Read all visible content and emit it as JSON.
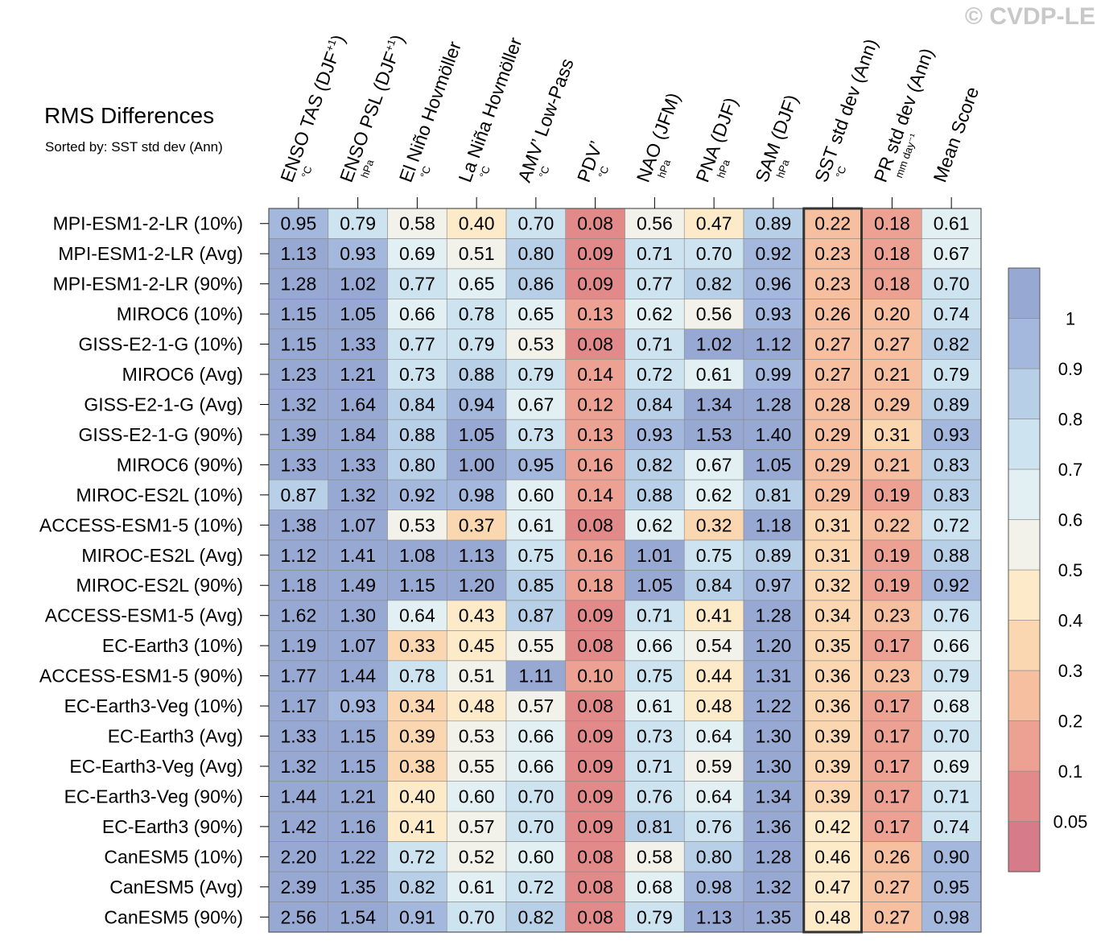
{
  "watermark": "© CVDP-LE",
  "chart_data": {
    "type": "heatmap",
    "title": "RMS Differences",
    "subtitle": "Sorted by: SST std dev (Ann)",
    "columns": [
      {
        "label": "ENSO TAS (DJF",
        "sup": "+1",
        "close": ")",
        "unit": "°C"
      },
      {
        "label": "ENSO PSL (DJF",
        "sup": "+1",
        "close": ")",
        "unit": "hPa"
      },
      {
        "label": "El Niño Hovmöller",
        "sup": "",
        "close": "",
        "unit": "°C"
      },
      {
        "label": "La Niña Hovmöller",
        "sup": "",
        "close": "",
        "unit": "°C"
      },
      {
        "label": "AMV’ Low-Pass",
        "sup": "",
        "close": "",
        "unit": "°C"
      },
      {
        "label": "PDV’",
        "sup": "",
        "close": "",
        "unit": "°C"
      },
      {
        "label": "NAO (JFM)",
        "sup": "",
        "close": "",
        "unit": "hPa"
      },
      {
        "label": "PNA (DJF)",
        "sup": "",
        "close": "",
        "unit": "hPa"
      },
      {
        "label": "SAM (DJF)",
        "sup": "",
        "close": "",
        "unit": "hPa"
      },
      {
        "label": "SST std dev (Ann)",
        "sup": "",
        "close": "",
        "unit": "°C"
      },
      {
        "label": "PR std dev (Ann)",
        "sup": "",
        "close": "",
        "unit": "mm day⁻¹"
      },
      {
        "label": "Mean Score",
        "sup": "",
        "close": "",
        "unit": ""
      }
    ],
    "rows": [
      "MPI-ESM1-2-LR (10%)",
      "MPI-ESM1-2-LR (Avg)",
      "MPI-ESM1-2-LR (90%)",
      "MIROC6 (10%)",
      "GISS-E2-1-G (10%)",
      "MIROC6 (Avg)",
      "GISS-E2-1-G (Avg)",
      "GISS-E2-1-G (90%)",
      "MIROC6 (90%)",
      "MIROC-ES2L (10%)",
      "ACCESS-ESM1-5 (10%)",
      "MIROC-ES2L (Avg)",
      "MIROC-ES2L (90%)",
      "ACCESS-ESM1-5 (Avg)",
      "EC-Earth3 (10%)",
      "ACCESS-ESM1-5 (90%)",
      "EC-Earth3-Veg (10%)",
      "EC-Earth3 (Avg)",
      "EC-Earth3-Veg (Avg)",
      "EC-Earth3-Veg (90%)",
      "EC-Earth3 (90%)",
      "CanESM5 (10%)",
      "CanESM5 (Avg)",
      "CanESM5 (90%)"
    ],
    "values": [
      [
        "0.95",
        "0.79",
        "0.58",
        "0.40",
        "0.70",
        "0.08",
        "0.56",
        "0.47",
        "0.89",
        "0.22",
        "0.18",
        "0.61"
      ],
      [
        "1.13",
        "0.93",
        "0.69",
        "0.51",
        "0.80",
        "0.09",
        "0.71",
        "0.70",
        "0.92",
        "0.23",
        "0.18",
        "0.67"
      ],
      [
        "1.28",
        "1.02",
        "0.77",
        "0.65",
        "0.86",
        "0.09",
        "0.77",
        "0.82",
        "0.96",
        "0.23",
        "0.18",
        "0.70"
      ],
      [
        "1.15",
        "1.05",
        "0.66",
        "0.78",
        "0.65",
        "0.13",
        "0.62",
        "0.56",
        "0.93",
        "0.26",
        "0.20",
        "0.74"
      ],
      [
        "1.15",
        "1.33",
        "0.77",
        "0.79",
        "0.53",
        "0.08",
        "0.71",
        "1.02",
        "1.12",
        "0.27",
        "0.27",
        "0.82"
      ],
      [
        "1.23",
        "1.21",
        "0.73",
        "0.88",
        "0.79",
        "0.14",
        "0.72",
        "0.61",
        "0.99",
        "0.27",
        "0.21",
        "0.79"
      ],
      [
        "1.32",
        "1.64",
        "0.84",
        "0.94",
        "0.67",
        "0.12",
        "0.84",
        "1.34",
        "1.28",
        "0.28",
        "0.29",
        "0.89"
      ],
      [
        "1.39",
        "1.84",
        "0.88",
        "1.05",
        "0.73",
        "0.13",
        "0.93",
        "1.53",
        "1.40",
        "0.29",
        "0.31",
        "0.93"
      ],
      [
        "1.33",
        "1.33",
        "0.80",
        "1.00",
        "0.95",
        "0.16",
        "0.82",
        "0.67",
        "1.05",
        "0.29",
        "0.21",
        "0.83"
      ],
      [
        "0.87",
        "1.32",
        "0.92",
        "0.98",
        "0.60",
        "0.14",
        "0.88",
        "0.62",
        "0.81",
        "0.29",
        "0.19",
        "0.83"
      ],
      [
        "1.38",
        "1.07",
        "0.53",
        "0.37",
        "0.61",
        "0.08",
        "0.62",
        "0.32",
        "1.18",
        "0.31",
        "0.22",
        "0.72"
      ],
      [
        "1.12",
        "1.41",
        "1.08",
        "1.13",
        "0.75",
        "0.16",
        "1.01",
        "0.75",
        "0.89",
        "0.31",
        "0.19",
        "0.88"
      ],
      [
        "1.18",
        "1.49",
        "1.15",
        "1.20",
        "0.85",
        "0.18",
        "1.05",
        "0.84",
        "0.97",
        "0.32",
        "0.19",
        "0.92"
      ],
      [
        "1.62",
        "1.30",
        "0.64",
        "0.43",
        "0.87",
        "0.09",
        "0.71",
        "0.41",
        "1.28",
        "0.34",
        "0.23",
        "0.76"
      ],
      [
        "1.19",
        "1.07",
        "0.33",
        "0.45",
        "0.55",
        "0.08",
        "0.66",
        "0.54",
        "1.20",
        "0.35",
        "0.17",
        "0.66"
      ],
      [
        "1.77",
        "1.44",
        "0.78",
        "0.51",
        "1.11",
        "0.10",
        "0.75",
        "0.44",
        "1.31",
        "0.36",
        "0.23",
        "0.79"
      ],
      [
        "1.17",
        "0.93",
        "0.34",
        "0.48",
        "0.57",
        "0.08",
        "0.61",
        "0.48",
        "1.22",
        "0.36",
        "0.17",
        "0.68"
      ],
      [
        "1.33",
        "1.15",
        "0.39",
        "0.53",
        "0.66",
        "0.09",
        "0.73",
        "0.64",
        "1.30",
        "0.39",
        "0.17",
        "0.70"
      ],
      [
        "1.32",
        "1.15",
        "0.38",
        "0.55",
        "0.66",
        "0.09",
        "0.71",
        "0.59",
        "1.30",
        "0.39",
        "0.17",
        "0.69"
      ],
      [
        "1.44",
        "1.21",
        "0.40",
        "0.60",
        "0.70",
        "0.09",
        "0.76",
        "0.64",
        "1.34",
        "0.39",
        "0.17",
        "0.71"
      ],
      [
        "1.42",
        "1.16",
        "0.41",
        "0.57",
        "0.70",
        "0.09",
        "0.81",
        "0.76",
        "1.36",
        "0.42",
        "0.17",
        "0.74"
      ],
      [
        "2.20",
        "1.22",
        "0.72",
        "0.52",
        "0.60",
        "0.08",
        "0.58",
        "0.80",
        "1.28",
        "0.46",
        "0.26",
        "0.90"
      ],
      [
        "2.39",
        "1.35",
        "0.82",
        "0.61",
        "0.72",
        "0.08",
        "0.68",
        "0.98",
        "1.32",
        "0.47",
        "0.27",
        "0.95"
      ],
      [
        "2.56",
        "1.54",
        "0.91",
        "0.70",
        "0.82",
        "0.08",
        "0.79",
        "1.13",
        "1.35",
        "0.48",
        "0.27",
        "0.98"
      ]
    ],
    "highlight_column": 9,
    "colorbar": {
      "levels": [
        0.05,
        0.1,
        0.2,
        0.3,
        0.4,
        0.5,
        0.6,
        0.7,
        0.8,
        0.9,
        1
      ],
      "labels": [
        "0.05",
        "0.1",
        "0.2",
        "0.3",
        "0.4",
        "0.5",
        "0.6",
        "0.7",
        "0.8",
        "0.9",
        "1"
      ],
      "colors": [
        "#d67b8a",
        "#e28a8a",
        "#eda193",
        "#f5bfa0",
        "#fbd7b1",
        "#fdeac8",
        "#f2f2ea",
        "#e2f0f4",
        "#cde3ef",
        "#b8d0e7",
        "#a3b8dc",
        "#97a9d3"
      ]
    }
  }
}
